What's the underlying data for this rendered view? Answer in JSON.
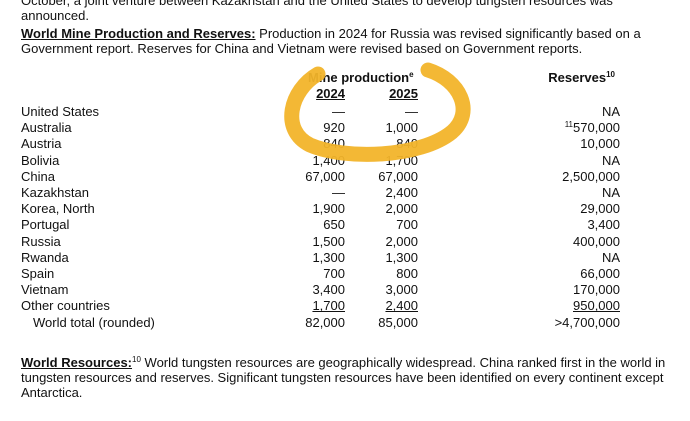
{
  "top_line": "October, a joint venture between Kazakhstan and the United States to develop tungsten resources was announced.",
  "section1": {
    "heading": "World Mine Production and Reserves:",
    "text": " Production in 2024 for Russia was revised significantly based on a Government report. Reserves for China and Vietnam were revised based on Government reports."
  },
  "table": {
    "header": {
      "production": "Mine production",
      "production_note": "e",
      "year1": "2024",
      "year2": "2025",
      "reserves": "Reserves",
      "reserves_note": "10"
    },
    "rows": [
      [
        "United States",
        "—",
        "—",
        "NA",
        ""
      ],
      [
        "Australia",
        "920",
        "1,000",
        "570,000",
        "11"
      ],
      [
        "Austria",
        "840",
        "840",
        "10,000",
        ""
      ],
      [
        "Bolivia",
        "1,400",
        "1,700",
        "NA",
        ""
      ],
      [
        "China",
        "67,000",
        "67,000",
        "2,500,000",
        ""
      ],
      [
        "Kazakhstan",
        "—",
        "2,400",
        "NA",
        ""
      ],
      [
        "Korea, North",
        "1,900",
        "2,000",
        "29,000",
        ""
      ],
      [
        "Portugal",
        "650",
        "700",
        "3,400",
        ""
      ],
      [
        "Russia",
        "1,500",
        "2,000",
        "400,000",
        ""
      ],
      [
        "Rwanda",
        "1,300",
        "1,300",
        "NA",
        ""
      ],
      [
        "Spain",
        "700",
        "800",
        "66,000",
        ""
      ],
      [
        "Vietnam",
        "3,400",
        "3,000",
        "170,000",
        ""
      ],
      [
        "Other countries",
        "1,700",
        "2,400",
        "950,000",
        ""
      ],
      [
        "World total (rounded)",
        "82,000",
        "85,000",
        ">4,700,000",
        ""
      ]
    ]
  },
  "section2": {
    "heading": "World Resources:",
    "note": "10",
    "text": " World tungsten resources are geographically widespread.  China ranked first in the world in tungsten resources and reserves. Significant tungsten resources have been identified on every continent except Antarctica."
  }
}
